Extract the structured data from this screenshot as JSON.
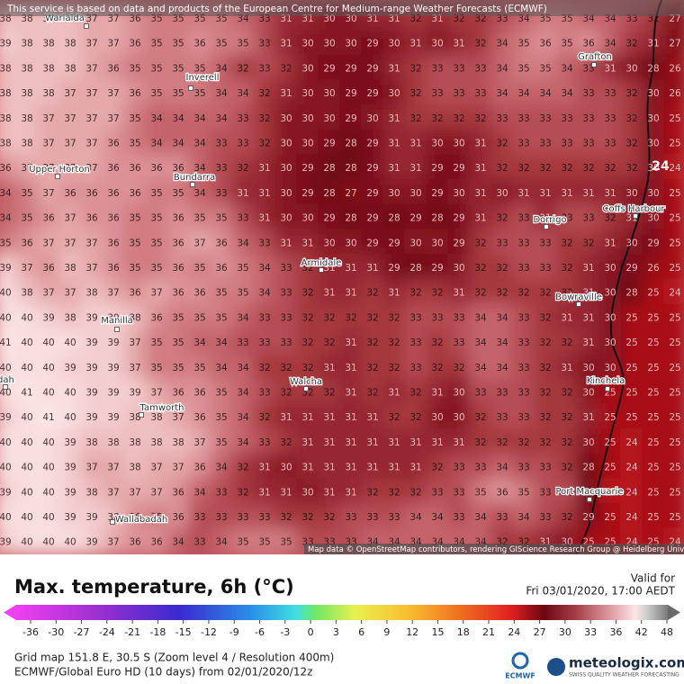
{
  "banner": "This service is based on data and products of the European Centre for Medium-range Weather Forecasts (ECMWF)",
  "grid": [
    [
      38,
      38,
      38,
      38,
      37,
      37,
      36,
      35,
      35,
      35,
      35,
      34,
      33,
      31,
      31,
      30,
      30,
      31,
      31,
      32,
      31,
      32,
      32,
      33,
      34,
      35,
      35,
      34,
      34,
      33,
      32,
      27
    ],
    [
      39,
      38,
      38,
      38,
      37,
      37,
      36,
      35,
      35,
      36,
      35,
      35,
      33,
      31,
      30,
      30,
      30,
      29,
      30,
      31,
      30,
      31,
      32,
      34,
      35,
      36,
      35,
      36,
      34,
      32,
      31,
      27
    ],
    [
      38,
      38,
      38,
      38,
      37,
      36,
      35,
      35,
      35,
      35,
      34,
      32,
      33,
      32,
      30,
      29,
      29,
      29,
      31,
      32,
      33,
      33,
      33,
      34,
      35,
      35,
      34,
      33,
      31,
      30,
      28,
      26
    ],
    [
      38,
      38,
      38,
      37,
      37,
      37,
      36,
      35,
      35,
      35,
      34,
      34,
      32,
      31,
      30,
      30,
      29,
      29,
      30,
      32,
      33,
      33,
      33,
      34,
      34,
      34,
      34,
      33,
      33,
      32,
      30,
      26
    ],
    [
      38,
      38,
      37,
      37,
      37,
      37,
      35,
      34,
      34,
      34,
      34,
      33,
      32,
      30,
      30,
      30,
      29,
      30,
      31,
      32,
      32,
      32,
      32,
      33,
      33,
      33,
      33,
      33,
      33,
      32,
      30,
      25
    ],
    [
      38,
      38,
      37,
      37,
      37,
      36,
      35,
      34,
      34,
      34,
      33,
      33,
      32,
      30,
      30,
      29,
      28,
      29,
      31,
      31,
      30,
      30,
      31,
      32,
      33,
      33,
      33,
      33,
      33,
      32,
      30,
      25
    ],
    [
      36,
      37,
      37,
      37,
      37,
      36,
      36,
      36,
      36,
      34,
      33,
      32,
      31,
      30,
      29,
      28,
      28,
      29,
      31,
      31,
      29,
      29,
      31,
      32,
      32,
      32,
      32,
      32,
      32,
      32,
      30,
      24
    ],
    [
      34,
      35,
      37,
      36,
      36,
      36,
      36,
      35,
      35,
      34,
      33,
      31,
      31,
      30,
      29,
      28,
      27,
      29,
      30,
      30,
      29,
      30,
      31,
      30,
      31,
      31,
      31,
      31,
      31,
      30,
      30,
      25
    ],
    [
      34,
      35,
      36,
      37,
      36,
      36,
      35,
      35,
      36,
      35,
      35,
      33,
      31,
      30,
      30,
      29,
      28,
      29,
      28,
      29,
      28,
      29,
      31,
      32,
      33,
      31,
      33,
      33,
      32,
      31,
      30,
      25
    ],
    [
      35,
      36,
      37,
      37,
      37,
      36,
      35,
      35,
      36,
      37,
      36,
      34,
      33,
      31,
      31,
      30,
      30,
      29,
      29,
      30,
      30,
      29,
      32,
      33,
      33,
      33,
      32,
      32,
      31,
      30,
      29,
      25
    ],
    [
      39,
      37,
      36,
      38,
      37,
      36,
      35,
      35,
      36,
      35,
      36,
      35,
      34,
      33,
      32,
      31,
      31,
      31,
      29,
      28,
      29,
      30,
      32,
      32,
      33,
      33,
      32,
      31,
      30,
      29,
      26,
      25
    ],
    [
      40,
      38,
      37,
      37,
      38,
      37,
      36,
      37,
      36,
      36,
      35,
      35,
      34,
      33,
      32,
      31,
      31,
      32,
      31,
      32,
      32,
      31,
      32,
      32,
      32,
      32,
      32,
      31,
      30,
      28,
      25,
      24
    ],
    [
      40,
      40,
      39,
      38,
      39,
      39,
      38,
      36,
      35,
      35,
      35,
      34,
      33,
      33,
      32,
      32,
      32,
      32,
      32,
      33,
      33,
      33,
      34,
      34,
      33,
      32,
      31,
      31,
      30,
      25,
      25,
      25
    ],
    [
      41,
      40,
      40,
      40,
      39,
      39,
      37,
      35,
      35,
      34,
      34,
      33,
      33,
      33,
      32,
      32,
      31,
      32,
      32,
      33,
      32,
      33,
      34,
      34,
      33,
      32,
      32,
      31,
      30,
      25,
      25,
      25
    ],
    [
      40,
      40,
      40,
      39,
      39,
      39,
      37,
      35,
      35,
      35,
      34,
      34,
      32,
      32,
      32,
      31,
      31,
      32,
      32,
      33,
      32,
      32,
      34,
      34,
      33,
      32,
      31,
      30,
      30,
      25,
      25,
      25
    ],
    [
      40,
      41,
      40,
      40,
      39,
      39,
      39,
      37,
      36,
      36,
      35,
      34,
      33,
      32,
      32,
      32,
      31,
      32,
      31,
      32,
      31,
      30,
      33,
      33,
      33,
      32,
      32,
      30,
      25,
      25,
      25,
      25
    ],
    [
      39,
      40,
      41,
      40,
      39,
      39,
      38,
      38,
      37,
      36,
      35,
      34,
      32,
      31,
      31,
      31,
      31,
      31,
      32,
      32,
      30,
      30,
      32,
      33,
      33,
      32,
      32,
      31,
      25,
      25,
      25,
      25
    ],
    [
      40,
      40,
      40,
      39,
      38,
      38,
      38,
      38,
      38,
      37,
      35,
      34,
      33,
      32,
      31,
      31,
      31,
      31,
      31,
      31,
      31,
      31,
      32,
      32,
      32,
      32,
      32,
      30,
      25,
      24,
      25,
      25
    ],
    [
      40,
      40,
      40,
      39,
      37,
      37,
      38,
      37,
      37,
      36,
      34,
      32,
      31,
      30,
      31,
      31,
      31,
      31,
      31,
      31,
      32,
      33,
      33,
      34,
      33,
      33,
      32,
      28,
      25,
      24,
      25,
      25
    ],
    [
      39,
      40,
      40,
      39,
      38,
      37,
      37,
      37,
      36,
      34,
      33,
      32,
      31,
      31,
      30,
      31,
      31,
      32,
      32,
      32,
      33,
      33,
      35,
      36,
      35,
      33,
      33,
      28,
      24,
      24,
      25,
      25
    ],
    [
      40,
      40,
      40,
      39,
      39,
      38,
      36,
      35,
      36,
      33,
      33,
      33,
      33,
      32,
      32,
      32,
      33,
      33,
      33,
      34,
      34,
      33,
      34,
      33,
      34,
      33,
      32,
      29,
      25,
      24,
      25,
      25
    ],
    [
      39,
      40,
      40,
      40,
      39,
      37,
      36,
      36,
      34,
      33,
      34,
      35,
      35,
      35,
      33,
      33,
      33,
      34,
      34,
      34,
      34,
      34,
      34,
      32,
      32,
      31,
      30,
      25,
      25,
      24,
      25,
      24
    ]
  ],
  "places": [
    "Warialda",
    "Inverell",
    "Grafton",
    "Upper Horton",
    "Bundarra",
    "Coffs Harbour",
    "Dorrigo",
    "Armidale",
    "Bowraville",
    "Manilla",
    "Kinchela",
    "Gunnedah",
    "Walcha",
    "Tamworth",
    "Port Macquarie",
    "Wallabadah"
  ],
  "highlight": 24,
  "attribution": "Map data © OpenStreetMap contributors, rendering GIScience Research Group @ Heidelberg University",
  "legend": {
    "title": "Max. temperature, 6h (°C)",
    "ticks": [
      -36,
      -30,
      -27,
      -24,
      -21,
      -18,
      -15,
      -12,
      -9,
      -6,
      -3,
      0,
      3,
      6,
      9,
      12,
      15,
      18,
      21,
      24,
      27,
      30,
      33,
      36,
      42,
      48
    ]
  },
  "valid": {
    "label": "Valid for",
    "time": "Fri 03/01/2020, 17:00 AEDT"
  },
  "footer": {
    "grid_info": "Grid map 151.8 E, 30.5 S (Zoom level 4 / Resolution 400m)",
    "model": "ECMWF/Global Euro HD (10 days) from 02/01/2020/12z"
  },
  "logo": {
    "name": "meteologix.com",
    "tagline": "SWISS QUALITY WEATHER FORECASTING",
    "ecmwf": "ECMWF"
  }
}
